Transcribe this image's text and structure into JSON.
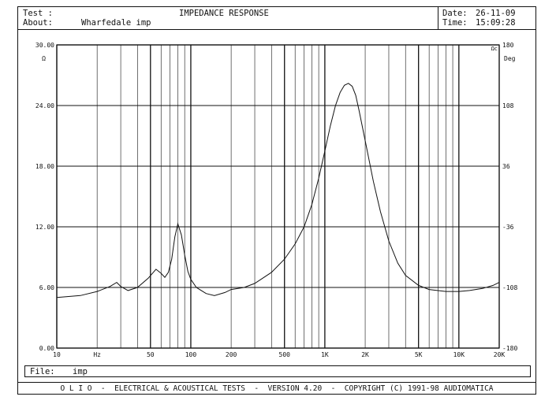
{
  "header": {
    "test_label": "Test :",
    "test_value": "IMPEDANCE RESPONSE",
    "about_label": "About:",
    "about_value": "Wharfedale imp",
    "date_label": "Date:",
    "date_value": "26-11-09",
    "time_label": "Time:",
    "time_value": "15:09:28"
  },
  "file_bar": {
    "label": "File:",
    "value": "imp"
  },
  "footer": {
    "text": "O L I O  -  ELECTRICAL & ACOUSTICAL TESTS  -  VERSION 4.20  -  COPYRIGHT (C) 1991-98 AUDIOMATICA"
  },
  "chart_data": {
    "type": "line",
    "title": "IMPEDANCE RESPONSE",
    "x_scale": "log",
    "xlim": [
      10,
      20000
    ],
    "xtick_labels": [
      {
        "value": 10,
        "label": "10"
      },
      {
        "value": 20,
        "label": "Hz"
      },
      {
        "value": 50,
        "label": "50"
      },
      {
        "value": 100,
        "label": "100"
      },
      {
        "value": 200,
        "label": "200"
      },
      {
        "value": 500,
        "label": "500"
      },
      {
        "value": 1000,
        "label": "1K"
      },
      {
        "value": 2000,
        "label": "2K"
      },
      {
        "value": 5000,
        "label": "5K"
      },
      {
        "value": 10000,
        "label": "10K"
      },
      {
        "value": 20000,
        "label": "20K"
      }
    ],
    "ylim": [
      0,
      30
    ],
    "yticks": [
      "0.00",
      "6.00",
      "12.00",
      "18.00",
      "24.00",
      "30.00"
    ],
    "ylabel": "Ω",
    "y2lim": [
      -180,
      180
    ],
    "y2ticks": [
      "-180",
      "-108",
      "-36",
      "36",
      "108",
      "180"
    ],
    "y2label": "Deg",
    "y2_unit_tag": "Ωc",
    "grid": true,
    "series": [
      {
        "x": [
          10,
          15,
          20,
          25,
          28,
          30,
          34,
          40,
          48,
          55,
          60,
          64,
          68,
          72,
          76,
          80,
          85,
          90,
          95,
          100,
          110,
          130,
          150,
          180,
          200,
          250,
          300,
          400,
          500,
          600,
          700,
          800,
          900,
          1000,
          1100,
          1200,
          1300,
          1400,
          1500,
          1600,
          1700,
          1800,
          2000,
          2300,
          2600,
          3000,
          3500,
          4000,
          5000,
          6000,
          8000,
          10000,
          12000,
          15000,
          18000,
          20000
        ],
        "y": [
          5.0,
          5.2,
          5.6,
          6.1,
          6.5,
          6.1,
          5.7,
          6.0,
          6.9,
          7.8,
          7.4,
          7.0,
          7.5,
          8.8,
          11.0,
          12.3,
          11.2,
          9.2,
          7.6,
          6.8,
          6.0,
          5.4,
          5.2,
          5.5,
          5.8,
          6.0,
          6.4,
          7.5,
          8.8,
          10.3,
          12.0,
          14.2,
          16.8,
          19.5,
          22.0,
          24.0,
          25.3,
          26.0,
          26.2,
          25.9,
          25.0,
          23.5,
          20.5,
          16.5,
          13.5,
          10.6,
          8.4,
          7.2,
          6.2,
          5.8,
          5.6,
          5.6,
          5.7,
          5.9,
          6.2,
          6.5
        ]
      }
    ]
  }
}
